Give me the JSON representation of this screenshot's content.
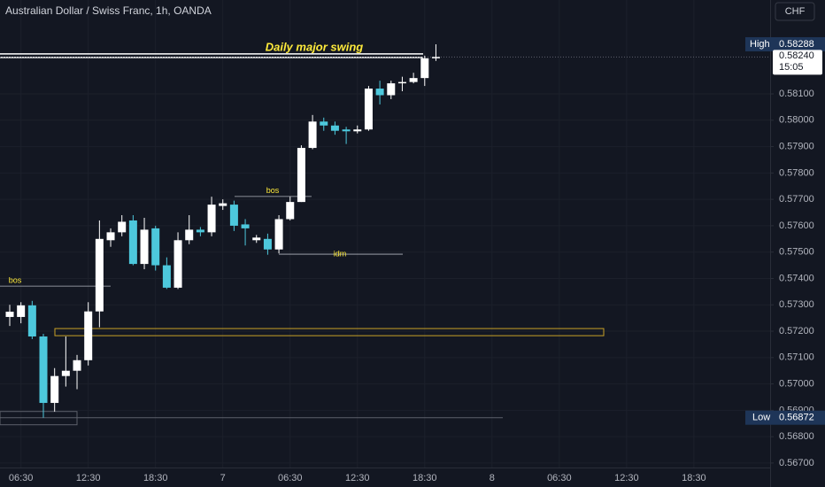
{
  "chart_data": {
    "type": "candlestick",
    "title": "Australian Dollar / Swiss Franc, 1h, OANDA",
    "currency": "CHF",
    "categories": [
      null,
      "06:30",
      null,
      null,
      null,
      null,
      null,
      "12:30",
      null,
      null,
      null,
      null,
      null,
      "18:30",
      null,
      null,
      null,
      null,
      null,
      "7",
      null,
      null,
      null,
      null,
      null,
      "06:30",
      null,
      null,
      null,
      null,
      null,
      "12:30",
      null,
      null,
      null,
      null,
      null,
      "18:30",
      null,
      null,
      null,
      null,
      null,
      "8",
      null,
      null,
      null,
      null,
      null,
      "06:30",
      null,
      null,
      null,
      null,
      null,
      "12:30",
      null,
      null,
      null,
      null,
      null,
      "18:30"
    ],
    "open": [
      0.57254,
      0.57254,
      0.57298,
      0.5718,
      0.56928,
      0.5703,
      0.5705,
      0.5709,
      0.57275,
      0.57545,
      0.57575,
      0.5762,
      0.57455,
      0.5759,
      0.5745,
      0.57365,
      0.57545,
      0.57585,
      0.57575,
      0.57675,
      0.5768,
      0.57605,
      0.57545,
      0.5755,
      0.5751,
      0.57625,
      0.5769,
      0.57895,
      0.57995,
      0.5798,
      0.57965,
      0.57958,
      0.57965,
      0.5812,
      0.58095,
      0.5814,
      0.58145,
      0.5816,
      0.58235,
      null,
      null,
      null,
      null,
      null,
      null,
      null,
      null,
      null,
      null,
      null,
      null,
      null,
      null,
      null,
      null,
      null,
      null,
      null,
      null,
      null,
      null,
      null
    ],
    "high": [
      0.573,
      0.5731,
      0.57315,
      0.5719,
      0.5706,
      0.5718,
      0.5711,
      0.5731,
      0.5762,
      0.5759,
      0.5764,
      0.5764,
      0.5763,
      0.576,
      0.5748,
      0.57575,
      0.5764,
      0.57595,
      0.5771,
      0.577,
      0.57695,
      0.57625,
      0.57565,
      0.5757,
      0.5764,
      0.5771,
      0.57905,
      0.5802,
      0.5801,
      0.57995,
      0.57975,
      0.5798,
      0.5813,
      0.5815,
      0.5815,
      0.58165,
      0.5818,
      0.58245,
      0.58288,
      null,
      null,
      null,
      null,
      null,
      null,
      null,
      null,
      null,
      null,
      null,
      null,
      null,
      null,
      null,
      null,
      null,
      null,
      null,
      null,
      null,
      null,
      null
    ],
    "low": [
      0.5722,
      0.5723,
      0.5717,
      0.56872,
      0.56895,
      0.5699,
      0.5698,
      0.5707,
      0.57215,
      0.5752,
      0.5756,
      0.5745,
      0.57435,
      0.5743,
      0.5736,
      0.5736,
      0.5753,
      0.5756,
      0.5756,
      0.5766,
      0.5758,
      0.57525,
      0.57535,
      0.5749,
      0.57495,
      0.5762,
      0.5769,
      0.5789,
      0.5796,
      0.57945,
      0.5791,
      0.5795,
      0.5796,
      0.5806,
      0.5808,
      0.5811,
      0.5814,
      0.5813,
      0.58225,
      null,
      null,
      null,
      null,
      null,
      null,
      null,
      null,
      null,
      null,
      null,
      null,
      null,
      null,
      null,
      null,
      null,
      null,
      null,
      null,
      null,
      null,
      null
    ],
    "close": [
      0.57274,
      0.57298,
      0.5718,
      0.56928,
      0.5703,
      0.5705,
      0.5709,
      0.57275,
      0.5755,
      0.57575,
      0.57615,
      0.57455,
      0.57585,
      0.5745,
      0.57365,
      0.57545,
      0.57585,
      0.57575,
      0.5768,
      0.57685,
      0.576,
      0.5759,
      0.57555,
      0.5751,
      0.57625,
      0.5769,
      0.57895,
      0.57995,
      0.5798,
      0.5796,
      0.57958,
      0.57965,
      0.5812,
      0.58095,
      0.5814,
      0.58145,
      0.5816,
      0.58235,
      0.5824,
      null,
      null,
      null,
      null,
      null,
      null,
      null,
      null,
      null,
      null,
      null,
      null,
      null,
      null,
      null,
      null,
      null,
      null,
      null,
      null,
      null,
      null,
      null
    ],
    "up_color": "#ffffff",
    "down_color": "#4dc8dc",
    "ylim": [
      0.56683,
      0.58456
    ],
    "yticks": [
      {
        "value": 0.567,
        "label": "0.56700"
      },
      {
        "value": 0.568,
        "label": "0.56800"
      },
      {
        "value": 0.569,
        "label": "0.56900"
      },
      {
        "value": 0.57,
        "label": "0.57000"
      },
      {
        "value": 0.571,
        "label": "0.57100"
      },
      {
        "value": 0.572,
        "label": "0.57200"
      },
      {
        "value": 0.573,
        "label": "0.57300"
      },
      {
        "value": 0.574,
        "label": "0.57400"
      },
      {
        "value": 0.575,
        "label": "0.57500"
      },
      {
        "value": 0.576,
        "label": "0.57600"
      },
      {
        "value": 0.577,
        "label": "0.57700"
      },
      {
        "value": 0.578,
        "label": "0.57800"
      },
      {
        "value": 0.579,
        "label": "0.57900"
      },
      {
        "value": 0.58,
        "label": "0.58000"
      },
      {
        "value": 0.581,
        "label": "0.58100"
      }
    ],
    "high_marker": {
      "label": "High",
      "value": 0.58288
    },
    "low_marker": {
      "label": "Low",
      "value": 0.56872
    },
    "last_price": {
      "value": 0.5824,
      "label": "0.58240",
      "countdown": "15:05"
    },
    "annotations": [
      {
        "text": "Daily major swing",
        "value": 0.58245
      },
      {
        "text": "bos",
        "value": 0.57371
      },
      {
        "text": "bos",
        "value": 0.57711
      },
      {
        "text": "idm",
        "value": 0.57492
      }
    ],
    "zone": {
      "low": 0.57183,
      "high": 0.5721
    }
  }
}
